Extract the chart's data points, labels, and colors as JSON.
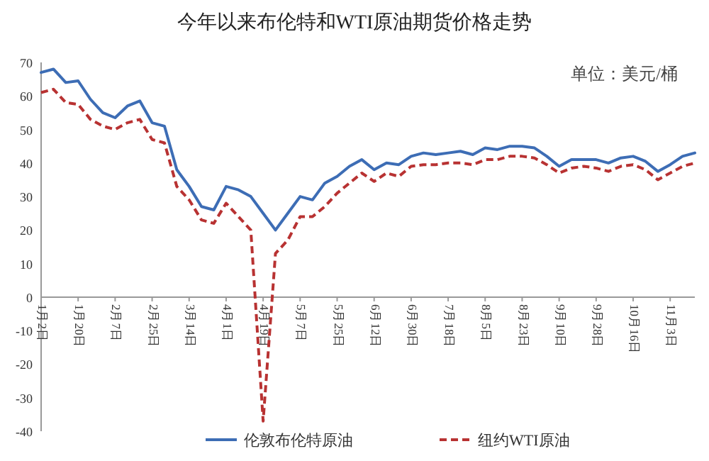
{
  "chart_data": {
    "type": "line",
    "title": "今年以来布伦特和WTI原油期货价格走势",
    "annotations": [
      "单位：美元/桶"
    ],
    "categories": [
      "1月2日",
      null,
      null,
      "1月20日",
      null,
      null,
      "2月7日",
      null,
      null,
      "2月25日",
      null,
      null,
      "3月14日",
      null,
      null,
      "4月1日",
      null,
      null,
      "4月19日",
      null,
      null,
      "5月7日",
      null,
      null,
      "5月25日",
      null,
      null,
      "6月12日",
      null,
      null,
      "6月30日",
      null,
      null,
      "7月18日",
      null,
      null,
      "8月5日",
      null,
      null,
      "8月23日",
      null,
      null,
      "9月10日",
      null,
      null,
      "9月28日",
      null,
      null,
      "10月16日",
      null,
      null,
      "11月3日",
      null,
      null
    ],
    "series": [
      {
        "name": "伦敦布伦特原油",
        "color": "#3d6db5",
        "line_style": "solid",
        "values": [
          67,
          68,
          64,
          64.5,
          59,
          55,
          53.5,
          57,
          58.5,
          52,
          51,
          38,
          33,
          27,
          26,
          33,
          32,
          30,
          25,
          20,
          25,
          30,
          29,
          34,
          36,
          39,
          41,
          38,
          40,
          39.5,
          42,
          43,
          42.5,
          43,
          43.5,
          42.5,
          44.5,
          44,
          45,
          45,
          44.5,
          42,
          39,
          41,
          41,
          41,
          40,
          41.5,
          42,
          40.5,
          37.5,
          39.5,
          42,
          43
        ]
      },
      {
        "name": "纽约WTI原油",
        "color": "#b83232",
        "line_style": "dashed",
        "values": [
          61,
          62,
          58,
          57.5,
          53,
          51,
          50,
          52,
          53,
          47,
          46,
          33,
          29,
          23,
          22,
          28,
          24,
          20,
          -37,
          13,
          17,
          24,
          24,
          27,
          31,
          34,
          37,
          34.5,
          37,
          36,
          39,
          39.5,
          39.5,
          40,
          40,
          39.5,
          41,
          41,
          42,
          42,
          41.5,
          39.5,
          37,
          38.5,
          39,
          38.5,
          37.5,
          39,
          39.5,
          38,
          35,
          37,
          39,
          40
        ]
      }
    ],
    "ylim": [
      -40,
      70
    ],
    "yticks": [
      -40,
      -30,
      -20,
      -10,
      0,
      10,
      20,
      30,
      40,
      50,
      60,
      70
    ],
    "grid": false,
    "legend": "bottom"
  }
}
